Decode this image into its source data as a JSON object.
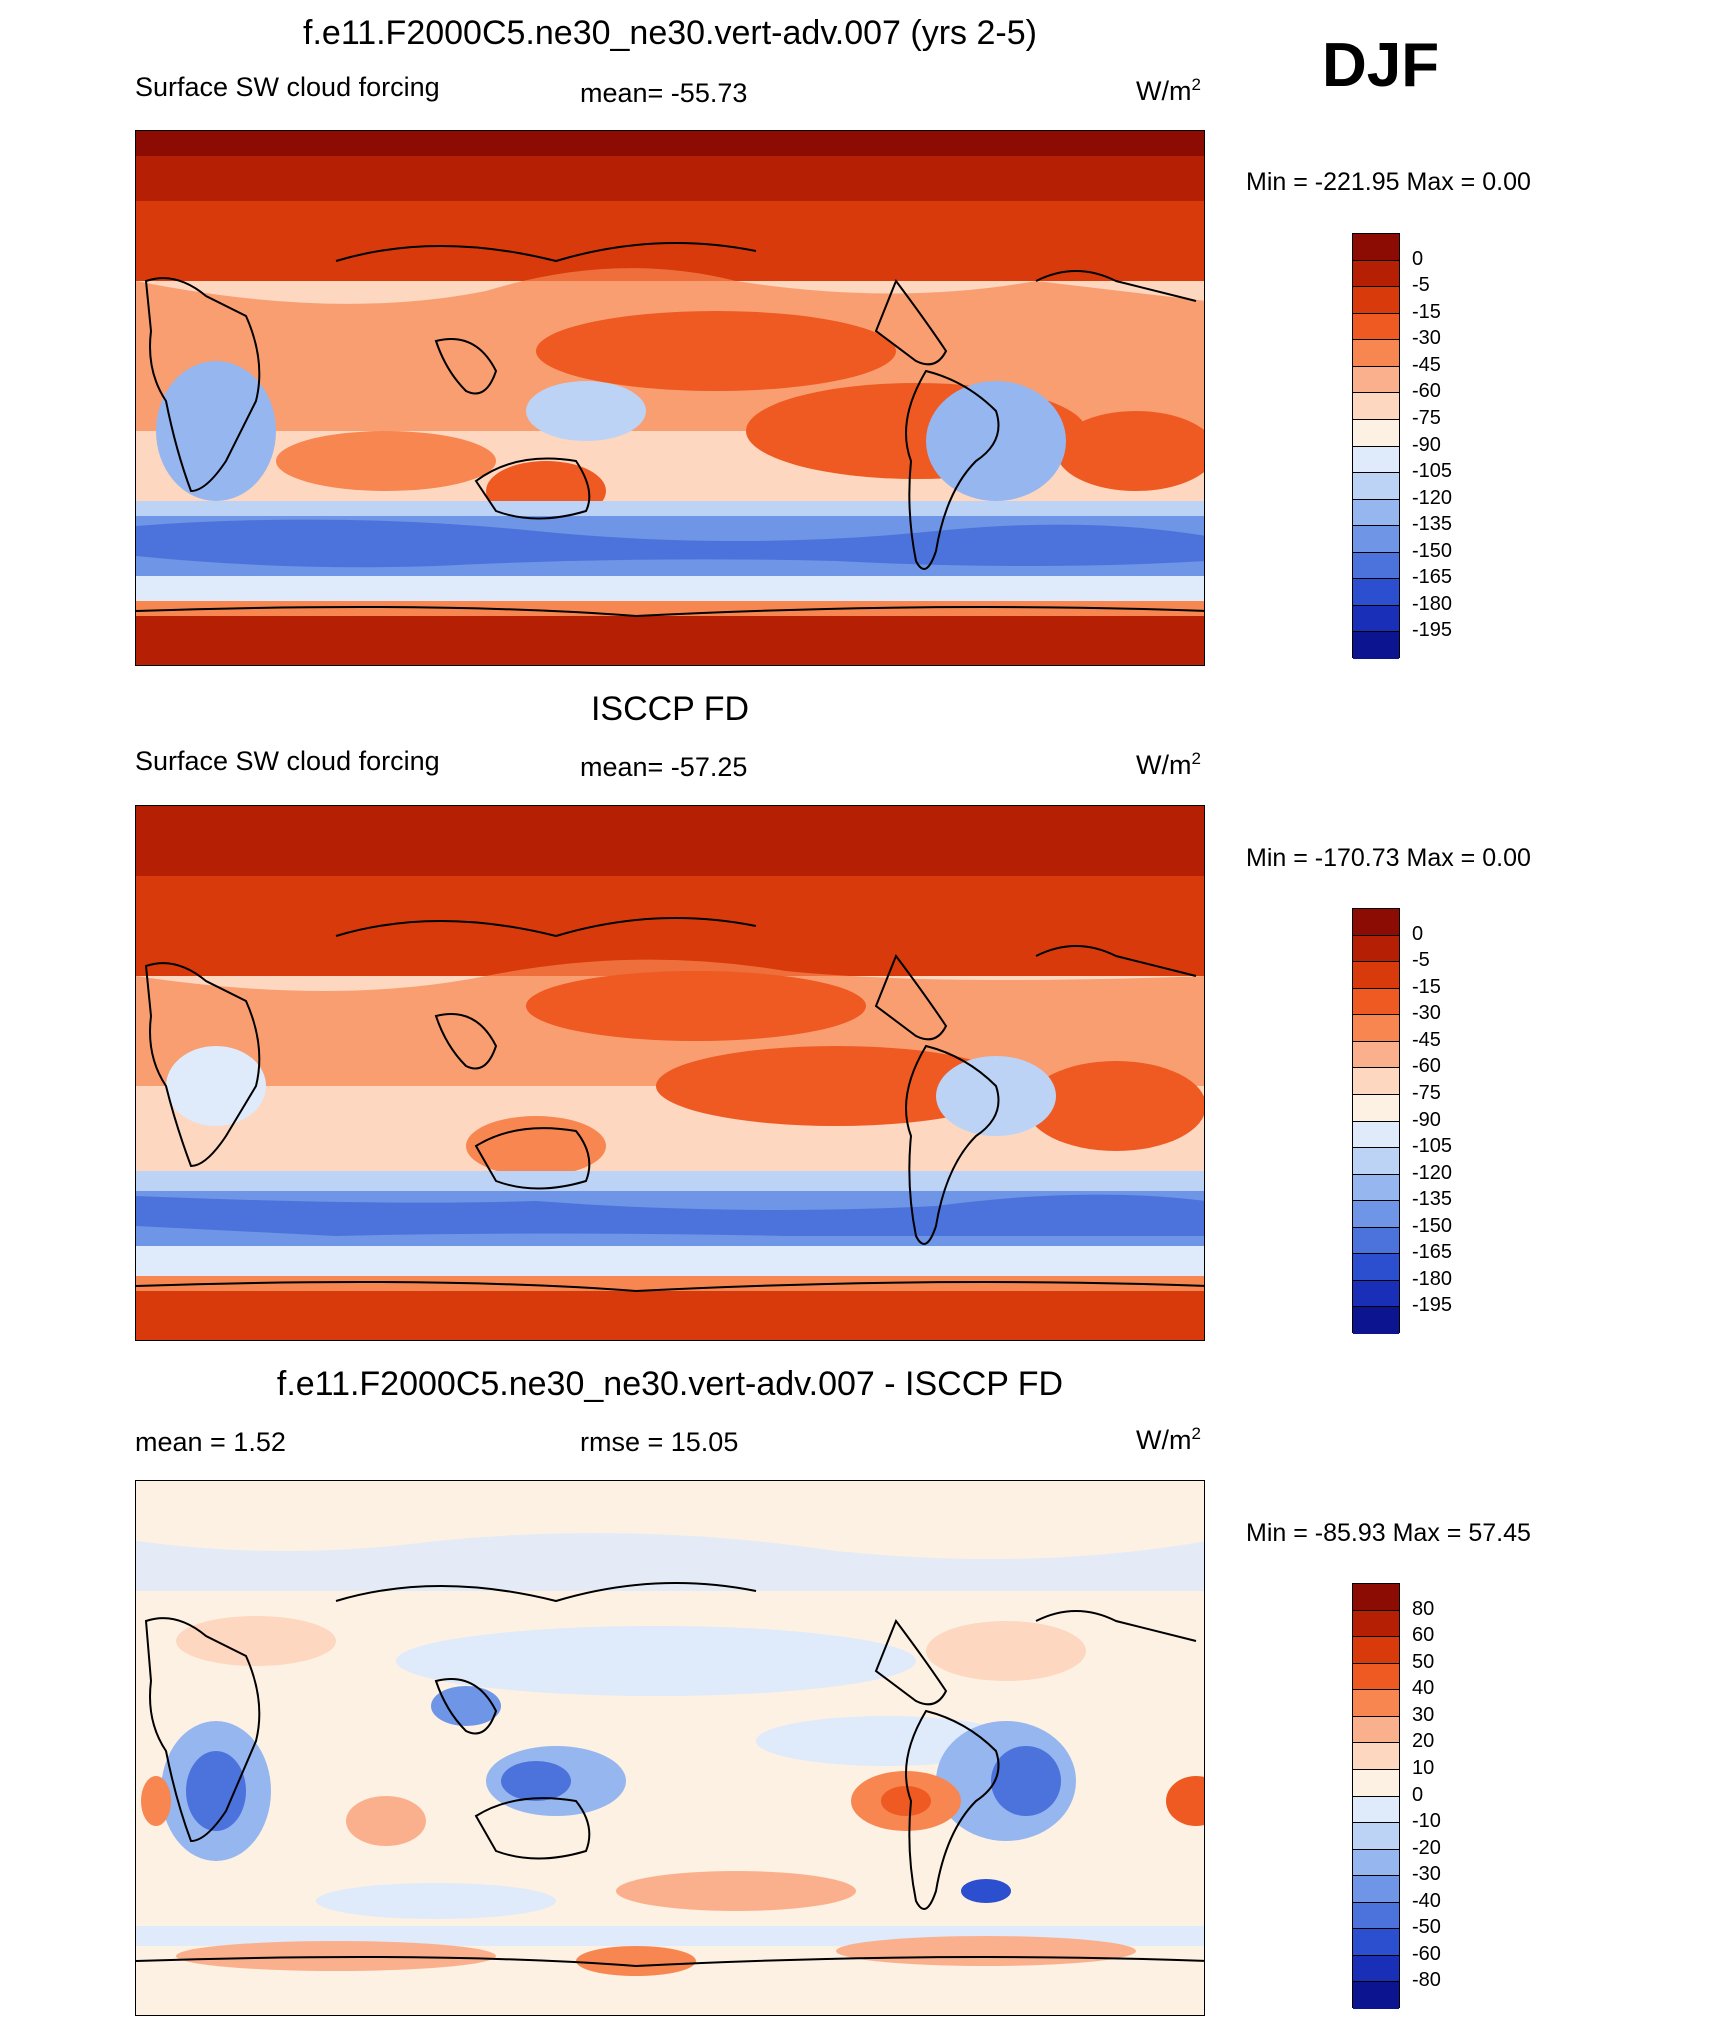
{
  "season": "DJF",
  "chart_data": [
    {
      "type": "heatmap",
      "title": "f.e11.F2000C5.ne30_ne30.vert-adv.007 (yrs 2-5)",
      "left_label": "Surface SW cloud forcing",
      "center_label": "mean= -55.73",
      "units_base": "W/m",
      "units_sup": "2",
      "stats": "Min = -221.95 Max =   0.00",
      "levels": [
        "0",
        "-5",
        "-15",
        "-30",
        "-45",
        "-60",
        "-75",
        "-90",
        "-105",
        "-120",
        "-135",
        "-150",
        "-165",
        "-180",
        "-195"
      ],
      "colors": [
        "#8c0c03",
        "#b51f04",
        "#d93a0b",
        "#ee5a22",
        "#f78650",
        "#fbb08d",
        "#fdd7c0",
        "#fdf1e3",
        "#dfeafa",
        "#bcd3f6",
        "#96b6ef",
        "#6f95e6",
        "#4c73db",
        "#2c4fcf",
        "#1a2fb8",
        "#0c158f"
      ]
    },
    {
      "type": "heatmap",
      "title": "ISCCP FD",
      "left_label": "Surface SW cloud forcing",
      "center_label": "mean= -57.25",
      "units_base": "W/m",
      "units_sup": "2",
      "stats": "Min = -170.73 Max =   0.00",
      "levels": [
        "0",
        "-5",
        "-15",
        "-30",
        "-45",
        "-60",
        "-75",
        "-90",
        "-105",
        "-120",
        "-135",
        "-150",
        "-165",
        "-180",
        "-195"
      ],
      "colors": [
        "#8c0c03",
        "#b51f04",
        "#d93a0b",
        "#ee5a22",
        "#f78650",
        "#fbb08d",
        "#fdd7c0",
        "#fdf1e3",
        "#dfeafa",
        "#bcd3f6",
        "#96b6ef",
        "#6f95e6",
        "#4c73db",
        "#2c4fcf",
        "#1a2fb8",
        "#0c158f"
      ]
    },
    {
      "type": "heatmap",
      "title": "f.e11.F2000C5.ne30_ne30.vert-adv.007 - ISCCP FD",
      "left_label": "mean =   1.52",
      "center_label": "rmse =  15.05",
      "units_base": "W/m",
      "units_sup": "2",
      "stats": "Min = -85.93 Max =  57.45",
      "levels": [
        "80",
        "60",
        "50",
        "40",
        "30",
        "20",
        "10",
        "0",
        "-10",
        "-20",
        "-30",
        "-40",
        "-50",
        "-60",
        "-80"
      ],
      "colors": [
        "#8c0c03",
        "#b51f04",
        "#d93a0b",
        "#ee5a22",
        "#f78650",
        "#fbb08d",
        "#fdd7c0",
        "#fdf1e3",
        "#dfeafa",
        "#bcd3f6",
        "#96b6ef",
        "#6f95e6",
        "#4c73db",
        "#2c4fcf",
        "#1a2fb8",
        "#0c158f"
      ]
    }
  ]
}
